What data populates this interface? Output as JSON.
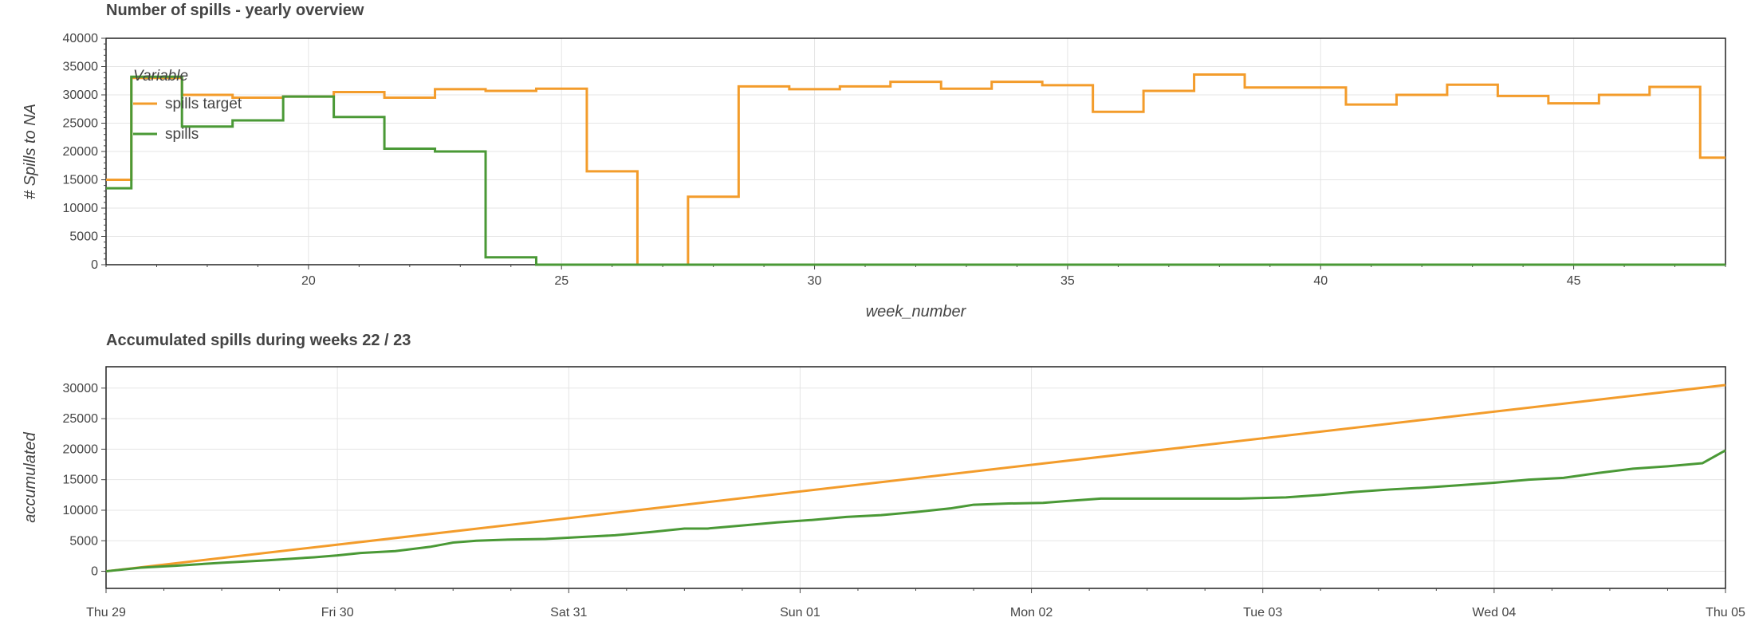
{
  "chart_data": [
    {
      "type": "line",
      "title": "Number of spills - yearly overview",
      "xlabel": "week_number",
      "ylabel": "# Spills to NA",
      "xlim": [
        16,
        48
      ],
      "ylim": [
        0,
        40000
      ],
      "x_ticks": [
        20,
        25,
        30,
        35,
        40,
        45
      ],
      "y_ticks": [
        0,
        5000,
        10000,
        15000,
        20000,
        25000,
        30000,
        35000,
        40000
      ],
      "grid": true,
      "legend": {
        "title": "Variable",
        "position": "top-left"
      },
      "step": "center",
      "x": [
        16,
        17,
        18,
        19,
        20,
        21,
        22,
        23,
        24,
        25,
        26,
        27,
        28,
        29,
        30,
        31,
        32,
        33,
        34,
        35,
        36,
        37,
        38,
        39,
        40,
        41,
        42,
        43,
        44,
        45,
        46,
        47,
        48
      ],
      "series": [
        {
          "name": "spills target",
          "color": "#f39c2b",
          "values": [
            15000,
            33000,
            30000,
            29500,
            29700,
            30500,
            29500,
            31000,
            30700,
            31100,
            16500,
            0,
            12000,
            31500,
            31000,
            31500,
            32300,
            31100,
            32300,
            31700,
            27000,
            30700,
            33600,
            31300,
            31300,
            28300,
            30000,
            31800,
            29800,
            28500,
            30000,
            31400,
            18900
          ]
        },
        {
          "name": "spills",
          "color": "#4a9936",
          "values": [
            13500,
            33200,
            24400,
            25500,
            29700,
            26100,
            20500,
            20000,
            1300,
            0,
            0,
            0,
            0,
            0,
            0,
            0,
            0,
            0,
            0,
            0,
            0,
            0,
            0,
            0,
            0,
            0,
            0,
            0,
            0,
            0,
            0,
            0,
            0
          ]
        }
      ]
    },
    {
      "type": "line",
      "title": "Accumulated spills during weeks 22 / 23",
      "xlabel": "",
      "ylabel": "accumulated",
      "xlim": [
        0,
        7
      ],
      "ylim": [
        -2800,
        33500
      ],
      "x_tick_labels": [
        "Thu 29",
        "Fri 30",
        "Sat 31",
        "Sun 01",
        "Mon 02",
        "Tue 03",
        "Wed 04",
        "Thu 05"
      ],
      "y_ticks": [
        0,
        5000,
        10000,
        15000,
        20000,
        25000,
        30000
      ],
      "grid": true,
      "series": [
        {
          "name": "spills target",
          "color": "#f39c2b",
          "points": [
            [
              0,
              0
            ],
            [
              7,
              30500
            ]
          ]
        },
        {
          "name": "spills",
          "color": "#4a9936",
          "points": [
            [
              0,
              0
            ],
            [
              0.15,
              600
            ],
            [
              0.3,
              900
            ],
            [
              0.5,
              1400
            ],
            [
              0.7,
              1800
            ],
            [
              0.9,
              2300
            ],
            [
              1,
              2600
            ],
            [
              1.1,
              3000
            ],
            [
              1.25,
              3300
            ],
            [
              1.4,
              4000
            ],
            [
              1.5,
              4700
            ],
            [
              1.6,
              5000
            ],
            [
              1.75,
              5200
            ],
            [
              1.9,
              5300
            ],
            [
              2.05,
              5600
            ],
            [
              2.2,
              5900
            ],
            [
              2.35,
              6400
            ],
            [
              2.5,
              7000
            ],
            [
              2.6,
              7000
            ],
            [
              2.75,
              7500
            ],
            [
              2.9,
              8000
            ],
            [
              3.05,
              8400
            ],
            [
              3.2,
              8900
            ],
            [
              3.35,
              9200
            ],
            [
              3.5,
              9700
            ],
            [
              3.65,
              10300
            ],
            [
              3.75,
              10900
            ],
            [
              3.9,
              11100
            ],
            [
              4.05,
              11200
            ],
            [
              4.15,
              11500
            ],
            [
              4.3,
              11900
            ],
            [
              4.5,
              11900
            ],
            [
              4.7,
              11900
            ],
            [
              4.9,
              11900
            ],
            [
              5.1,
              12100
            ],
            [
              5.25,
              12500
            ],
            [
              5.4,
              13000
            ],
            [
              5.55,
              13400
            ],
            [
              5.7,
              13700
            ],
            [
              5.85,
              14100
            ],
            [
              6.0,
              14500
            ],
            [
              6.15,
              15000
            ],
            [
              6.3,
              15300
            ],
            [
              6.45,
              16100
            ],
            [
              6.6,
              16800
            ],
            [
              6.75,
              17200
            ],
            [
              6.9,
              17700
            ],
            [
              7,
              19800
            ]
          ]
        }
      ]
    }
  ]
}
